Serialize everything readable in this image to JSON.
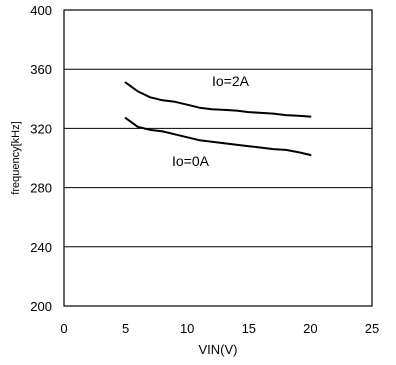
{
  "chart_data": {
    "type": "line",
    "title": "",
    "xlabel": "VIN(V)",
    "ylabel": "frequency[kHz]",
    "xlim": [
      0,
      25
    ],
    "ylim": [
      200,
      400
    ],
    "xticks": [
      0,
      5,
      10,
      15,
      20,
      25
    ],
    "yticks": [
      200,
      240,
      280,
      320,
      360,
      400
    ],
    "grid": true,
    "series": [
      {
        "name": "Io=2A",
        "x": [
          5,
          6,
          7,
          8,
          9,
          10,
          11,
          12,
          13,
          14,
          15,
          16,
          17,
          18,
          19,
          20
        ],
        "y": [
          351,
          345,
          341,
          339,
          338,
          336,
          334,
          333,
          332.5,
          332,
          331,
          330.5,
          330,
          329,
          328.5,
          328
        ]
      },
      {
        "name": "Io=0A",
        "x": [
          5,
          6,
          7,
          8,
          9,
          10,
          11,
          12,
          13,
          14,
          15,
          16,
          17,
          18,
          19,
          20
        ],
        "y": [
          327,
          321,
          319,
          318,
          316,
          314,
          312,
          311,
          310,
          309,
          308,
          307,
          306,
          305.5,
          304,
          302
        ]
      }
    ],
    "annotations": [
      {
        "text": "Io=2A",
        "series": 0
      },
      {
        "text": "Io=0A",
        "series": 1
      }
    ]
  }
}
